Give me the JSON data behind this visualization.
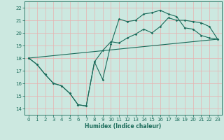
{
  "xlabel": "Humidex (Indice chaleur)",
  "ylabel": "",
  "xlim": [
    -0.5,
    23.5
  ],
  "ylim": [
    13.5,
    22.5
  ],
  "xticks": [
    0,
    1,
    2,
    3,
    4,
    5,
    6,
    7,
    8,
    9,
    10,
    11,
    12,
    13,
    14,
    15,
    16,
    17,
    18,
    19,
    20,
    21,
    22,
    23
  ],
  "yticks": [
    14,
    15,
    16,
    17,
    18,
    19,
    20,
    21,
    22
  ],
  "bg_color": "#cce8e0",
  "grid_color": "#e8b0b0",
  "line_color": "#1a6b5a",
  "line1_x": [
    0,
    1,
    2,
    3,
    4,
    5,
    6,
    7,
    8,
    9,
    10,
    11,
    12,
    13,
    14,
    15,
    16,
    17,
    18,
    19,
    20,
    21,
    22,
    23
  ],
  "line1_y": [
    18.0,
    17.5,
    16.7,
    16.0,
    15.8,
    15.2,
    14.3,
    14.2,
    17.7,
    16.3,
    19.1,
    21.1,
    20.9,
    21.0,
    21.5,
    21.6,
    21.8,
    21.5,
    21.3,
    20.4,
    20.3,
    19.8,
    19.6,
    19.5
  ],
  "line2_x": [
    0,
    1,
    2,
    3,
    4,
    5,
    6,
    7,
    8,
    9,
    10,
    11,
    12,
    13,
    14,
    15,
    16,
    17,
    18,
    19,
    20,
    21,
    22,
    23
  ],
  "line2_y": [
    18.0,
    17.5,
    16.7,
    16.0,
    15.8,
    15.2,
    14.3,
    14.2,
    17.7,
    18.6,
    19.3,
    19.2,
    19.6,
    19.9,
    20.3,
    20.0,
    20.5,
    21.2,
    21.0,
    21.0,
    20.9,
    20.8,
    20.5,
    19.5
  ],
  "line3_x": [
    0,
    23
  ],
  "line3_y": [
    18.0,
    19.5
  ]
}
